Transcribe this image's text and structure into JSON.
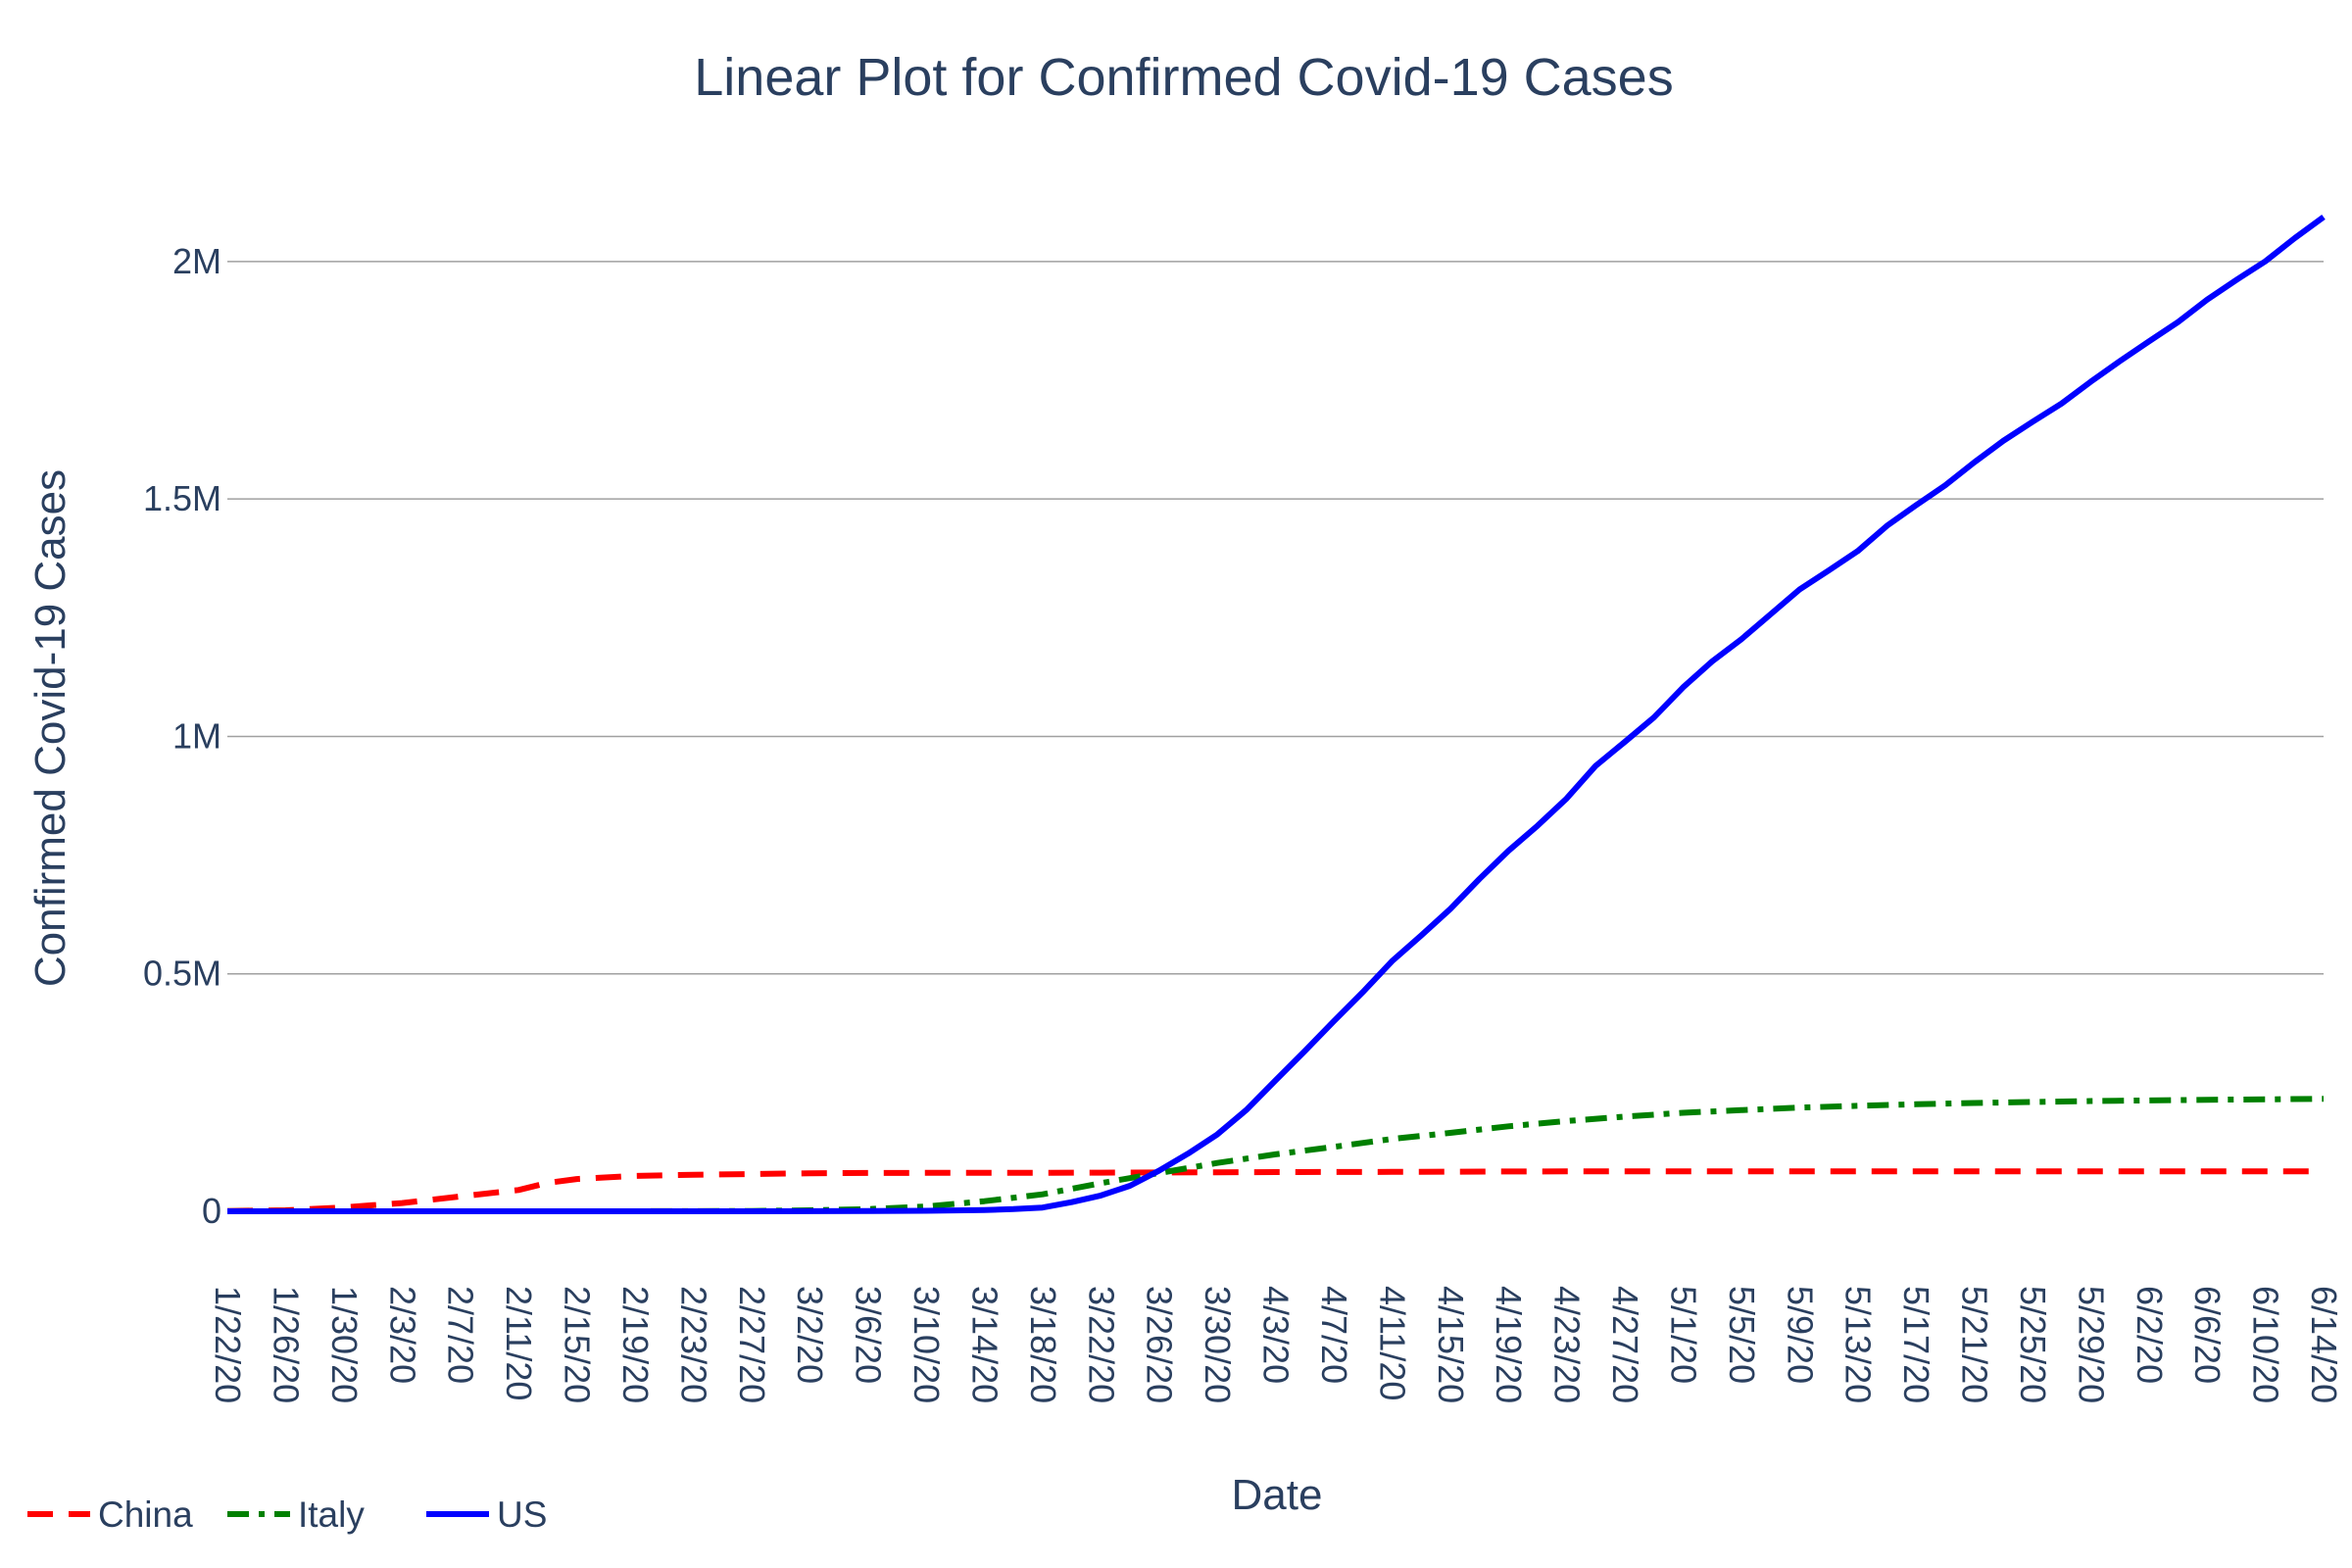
{
  "chart_data": {
    "type": "line",
    "title": "Linear Plot for Confirmed Covid-19 Cases",
    "xlabel": "Date",
    "ylabel": "Confirmed Covid-19 Cases",
    "x_range": [
      "1/22/20",
      "6/14/20"
    ],
    "ylim": [
      0,
      2200000
    ],
    "y_ticks": [
      {
        "value": 0,
        "label": "0"
      },
      {
        "value": 500000,
        "label": "0.5M"
      },
      {
        "value": 1000000,
        "label": "1M"
      },
      {
        "value": 1500000,
        "label": "1.5M"
      },
      {
        "value": 2000000,
        "label": "2M"
      }
    ],
    "x_ticks": [
      "1/22/20",
      "1/26/20",
      "1/30/20",
      "2/3/20",
      "2/7/20",
      "2/11/20",
      "2/15/20",
      "2/19/20",
      "2/23/20",
      "2/27/20",
      "3/2/20",
      "3/6/20",
      "3/10/20",
      "3/14/20",
      "3/18/20",
      "3/22/20",
      "3/26/20",
      "3/30/20",
      "4/3/20",
      "4/7/20",
      "4/11/20",
      "4/15/20",
      "4/19/20",
      "4/23/20",
      "4/27/20",
      "5/1/20",
      "5/5/20",
      "5/9/20",
      "5/13/20",
      "5/17/20",
      "5/21/20",
      "5/25/20",
      "5/29/20",
      "6/2/20",
      "6/6/20",
      "6/10/20",
      "6/14/20"
    ],
    "grid": true,
    "legend_position": "bottom-left",
    "series": [
      {
        "name": "China",
        "color": "#ff0000",
        "dash": "dash",
        "points": [
          [
            "1/22/20",
            550
          ],
          [
            "1/26/20",
            2100
          ],
          [
            "1/30/20",
            8200
          ],
          [
            "2/3/20",
            17400
          ],
          [
            "2/7/20",
            31200
          ],
          [
            "2/11/20",
            44700
          ],
          [
            "2/13/20",
            59900
          ],
          [
            "2/15/20",
            68000
          ],
          [
            "2/19/20",
            74600
          ],
          [
            "2/23/20",
            77000
          ],
          [
            "2/27/20",
            78500
          ],
          [
            "3/2/20",
            80000
          ],
          [
            "3/6/20",
            80600
          ],
          [
            "3/10/20",
            80900
          ],
          [
            "3/14/20",
            81000
          ],
          [
            "3/18/20",
            81100
          ],
          [
            "3/22/20",
            81400
          ],
          [
            "3/26/20",
            81800
          ],
          [
            "3/30/20",
            82100
          ],
          [
            "4/3/20",
            82500
          ],
          [
            "4/7/20",
            82700
          ],
          [
            "4/11/20",
            83000
          ],
          [
            "4/15/20",
            83300
          ],
          [
            "4/19/20",
            83800
          ],
          [
            "4/23/20",
            83900
          ],
          [
            "4/27/20",
            83900
          ],
          [
            "5/1/20",
            83900
          ],
          [
            "5/5/20",
            83900
          ],
          [
            "5/9/20",
            83900
          ],
          [
            "5/13/20",
            84000
          ],
          [
            "5/17/20",
            84000
          ],
          [
            "5/21/20",
            84100
          ],
          [
            "5/25/20",
            84100
          ],
          [
            "5/29/20",
            84100
          ],
          [
            "6/2/20",
            84100
          ],
          [
            "6/6/20",
            84200
          ],
          [
            "6/10/20",
            84200
          ],
          [
            "6/14/20",
            84300
          ]
        ]
      },
      {
        "name": "Italy",
        "color": "#008000",
        "dash": "dashdot",
        "points": [
          [
            "1/22/20",
            0
          ],
          [
            "1/30/20",
            0
          ],
          [
            "2/7/20",
            3
          ],
          [
            "2/15/20",
            3
          ],
          [
            "2/23/20",
            155
          ],
          [
            "2/27/20",
            650
          ],
          [
            "3/2/20",
            2036
          ],
          [
            "3/6/20",
            4636
          ],
          [
            "3/10/20",
            10149
          ],
          [
            "3/14/20",
            21157
          ],
          [
            "3/18/20",
            35713
          ],
          [
            "3/22/20",
            59138
          ],
          [
            "3/26/20",
            80589
          ],
          [
            "3/30/20",
            101739
          ],
          [
            "4/3/20",
            119827
          ],
          [
            "4/7/20",
            135586
          ],
          [
            "4/11/20",
            152271
          ],
          [
            "4/15/20",
            165155
          ],
          [
            "4/19/20",
            178972
          ],
          [
            "4/23/20",
            189973
          ],
          [
            "4/27/20",
            199414
          ],
          [
            "5/1/20",
            207428
          ],
          [
            "5/5/20",
            213013
          ],
          [
            "5/9/20",
            218268
          ],
          [
            "5/13/20",
            222104
          ],
          [
            "5/17/20",
            225435
          ],
          [
            "5/21/20",
            228006
          ],
          [
            "5/25/20",
            230158
          ],
          [
            "5/29/20",
            232248
          ],
          [
            "6/2/20",
            233515
          ],
          [
            "6/6/20",
            234801
          ],
          [
            "6/10/20",
            235763
          ],
          [
            "6/14/20",
            236989
          ]
        ]
      },
      {
        "name": "US",
        "color": "#0000ff",
        "dash": "solid",
        "points": [
          [
            "1/22/20",
            1
          ],
          [
            "2/1/20",
            8
          ],
          [
            "2/15/20",
            15
          ],
          [
            "2/27/20",
            60
          ],
          [
            "3/6/20",
            319
          ],
          [
            "3/10/20",
            1000
          ],
          [
            "3/14/20",
            2700
          ],
          [
            "3/16/20",
            4600
          ],
          [
            "3/18/20",
            7800
          ],
          [
            "3/20/20",
            19100
          ],
          [
            "3/22/20",
            33300
          ],
          [
            "3/24/20",
            53700
          ],
          [
            "3/26/20",
            85400
          ],
          [
            "3/28/20",
            121500
          ],
          [
            "3/30/20",
            161800
          ],
          [
            "4/1/20",
            213300
          ],
          [
            "4/3/20",
            275600
          ],
          [
            "4/5/20",
            336800
          ],
          [
            "4/7/20",
            399900
          ],
          [
            "4/9/20",
            461400
          ],
          [
            "4/11/20",
            526400
          ],
          [
            "4/13/20",
            580600
          ],
          [
            "4/15/20",
            636400
          ],
          [
            "4/17/20",
            699700
          ],
          [
            "4/19/20",
            759100
          ],
          [
            "4/21/20",
            811900
          ],
          [
            "4/23/20",
            869200
          ],
          [
            "4/25/20",
            938100
          ],
          [
            "4/27/20",
            988500
          ],
          [
            "4/29/20",
            1039900
          ],
          [
            "5/1/20",
            1103400
          ],
          [
            "5/3/20",
            1158000
          ],
          [
            "5/5/20",
            1204400
          ],
          [
            "5/7/20",
            1256900
          ],
          [
            "5/9/20",
            1309500
          ],
          [
            "5/11/20",
            1349600
          ],
          [
            "5/13/20",
            1390400
          ],
          [
            "5/15/20",
            1443400
          ],
          [
            "5/17/20",
            1486800
          ],
          [
            "5/19/20",
            1528600
          ],
          [
            "5/21/20",
            1577100
          ],
          [
            "5/23/20",
            1622600
          ],
          [
            "5/25/20",
            1662300
          ],
          [
            "5/27/20",
            1701000
          ],
          [
            "5/29/20",
            1746700
          ],
          [
            "5/31/20",
            1790200
          ],
          [
            "6/2/20",
            1831800
          ],
          [
            "6/4/20",
            1872700
          ],
          [
            "6/6/20",
            1920000
          ],
          [
            "6/8/20",
            1961200
          ],
          [
            "6/10/20",
            2000700
          ],
          [
            "6/12/20",
            2048900
          ],
          [
            "6/14/20",
            2094000
          ]
        ]
      }
    ]
  }
}
